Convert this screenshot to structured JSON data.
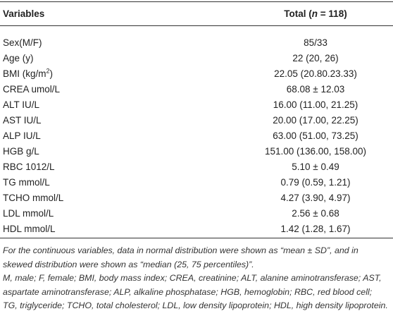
{
  "table": {
    "header": [
      "Variables",
      [
        "Total (",
        "n",
        " = 118)"
      ]
    ],
    "rows": [
      [
        "Sex(M/F)",
        "85/33"
      ],
      [
        "Age (y)",
        "22 (20, 26)"
      ],
      [
        [
          "BMI (kg/m",
          "2",
          ")"
        ],
        "22.05 (20.80.23.33)"
      ],
      [
        "CREA umol/L",
        "68.08 ± 12.03"
      ],
      [
        "ALT IU/L",
        "16.00 (11.00, 21.25)"
      ],
      [
        "AST IU/L",
        "20.00 (17.00, 22.25)"
      ],
      [
        "ALP IU/L",
        "63.00 (51.00, 73.25)"
      ],
      [
        "HGB g/L",
        "151.00 (136.00, 158.00)"
      ],
      [
        "RBC 1012/L",
        "5.10 ± 0.49"
      ],
      [
        "TG mmol/L",
        "0.79 (0.59, 1.21)"
      ],
      [
        "TCHO mmol/L",
        "4.27 (3.90, 4.97)"
      ],
      [
        "LDL mmol/L",
        "2.56 ± 0.68"
      ],
      [
        "HDL mmol/L",
        "1.42 (1.28, 1.67)"
      ]
    ]
  },
  "footnotes": [
    "For the continuous variables, data in normal distribution were shown as “mean ± SD”, and in skewed distribution were shown as “median (25, 75 percentiles)”.",
    "M, male; F, female; BMI, body mass index; CREA, creatinine; ALT, alanine aminotransferase; AST, aspartate aminotransferase; ALP, alkaline phosphatase; HGB, hemoglobin; RBC, red blood cell; TG, triglyceride; TCHO, total cholesterol; LDL, low density lipoprotein; HDL, high density lipoprotein."
  ]
}
